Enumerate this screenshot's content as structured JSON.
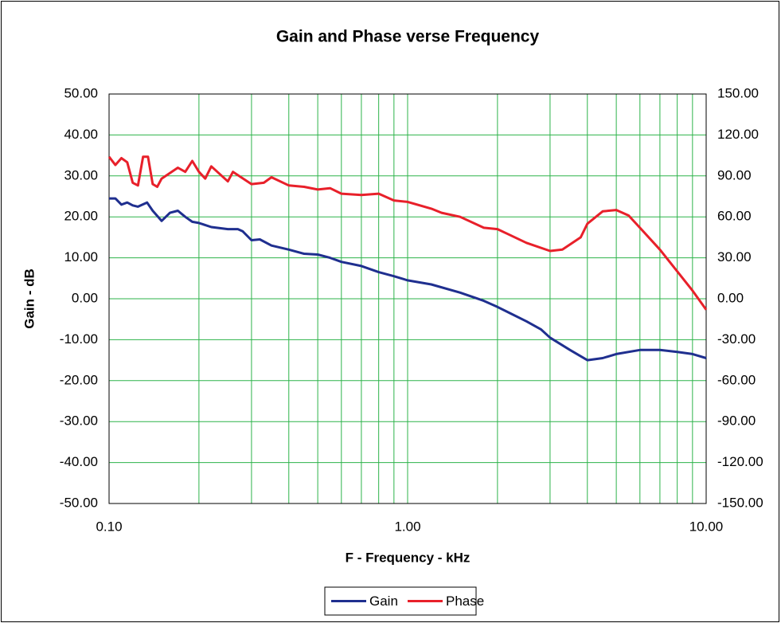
{
  "chart_data": {
    "type": "line",
    "title": "Gain and Phase verse Frequency",
    "x_label": "F - Frequency - kHz",
    "y_label": "Gain - dB",
    "xscale": "log",
    "xlim": [
      0.1,
      10
    ],
    "xticks": [
      {
        "value": 0.1,
        "label": "0.10"
      },
      {
        "value": 1,
        "label": "1.00"
      },
      {
        "value": 10,
        "label": "10.00"
      }
    ],
    "xminorticks": [
      0.2,
      0.3,
      0.4,
      0.5,
      0.6,
      0.7,
      0.8,
      0.9,
      2,
      3,
      4,
      5,
      6,
      7,
      8,
      9
    ],
    "ylim": [
      -50,
      50
    ],
    "yticks": [
      {
        "value": -50,
        "label": "-50.00"
      },
      {
        "value": -40,
        "label": "-40.00"
      },
      {
        "value": -30,
        "label": "-30.00"
      },
      {
        "value": -20,
        "label": "-20.00"
      },
      {
        "value": -10,
        "label": "-10.00"
      },
      {
        "value": 0,
        "label": "0.00"
      },
      {
        "value": 10,
        "label": "10.00"
      },
      {
        "value": 20,
        "label": "20.00"
      },
      {
        "value": 30,
        "label": "30.00"
      },
      {
        "value": 40,
        "label": "40.00"
      },
      {
        "value": 50,
        "label": "50.00"
      }
    ],
    "y2lim": [
      -150,
      150
    ],
    "y2ticks": [
      {
        "value": -150,
        "label": "-150.00"
      },
      {
        "value": -120,
        "label": "-120.00"
      },
      {
        "value": -90,
        "label": "-90.00"
      },
      {
        "value": -60,
        "label": "-60.00"
      },
      {
        "value": -30,
        "label": "-30.00"
      },
      {
        "value": 0,
        "label": "0.00"
      },
      {
        "value": 30,
        "label": "30.00"
      },
      {
        "value": 60,
        "label": "60.00"
      },
      {
        "value": 90,
        "label": "90.00"
      },
      {
        "value": 120,
        "label": "120.00"
      },
      {
        "value": 150,
        "label": "150.00"
      }
    ],
    "grid": true,
    "grid_color": "#2db34a",
    "legend": "bottom",
    "series": [
      {
        "name": "Gain",
        "color": "#1f2f8f",
        "x": [
          0.1,
          0.105,
          0.11,
          0.115,
          0.12,
          0.125,
          0.134,
          0.14,
          0.15,
          0.16,
          0.17,
          0.18,
          0.19,
          0.2,
          0.22,
          0.25,
          0.27,
          0.28,
          0.3,
          0.32,
          0.35,
          0.4,
          0.45,
          0.5,
          0.55,
          0.6,
          0.7,
          0.8,
          0.9,
          1.0,
          1.2,
          1.5,
          1.8,
          2.0,
          2.2,
          2.5,
          2.8,
          3.0,
          3.5,
          4.0,
          4.5,
          5.0,
          6.0,
          7.0,
          8.0,
          9.0,
          10
        ],
        "values": [
          24.5,
          24.5,
          23,
          23.5,
          22.8,
          22.5,
          23.5,
          21.5,
          19,
          21,
          21.5,
          20,
          18.8,
          18.5,
          17.5,
          17,
          17,
          16.5,
          14.3,
          14.5,
          13,
          12,
          11,
          10.8,
          10,
          9,
          8,
          6.5,
          5.5,
          4.5,
          3.5,
          1.5,
          -0.5,
          -2,
          -3.5,
          -5.5,
          -7.5,
          -9.5,
          -12.5,
          -15,
          -14.5,
          -13.5,
          -12.5,
          -12.5,
          -13,
          -13.5,
          -14.5
        ]
      },
      {
        "name": "Phase",
        "color": "#e8202a",
        "axis": "y2",
        "x": [
          0.1,
          0.105,
          0.11,
          0.115,
          0.12,
          0.125,
          0.13,
          0.135,
          0.14,
          0.145,
          0.15,
          0.17,
          0.18,
          0.19,
          0.2,
          0.21,
          0.22,
          0.25,
          0.26,
          0.3,
          0.33,
          0.35,
          0.4,
          0.45,
          0.5,
          0.55,
          0.6,
          0.7,
          0.8,
          0.9,
          1.0,
          1.2,
          1.3,
          1.5,
          1.8,
          2.0,
          2.5,
          3.0,
          3.3,
          3.8,
          4.0,
          4.5,
          5.0,
          5.5,
          6.0,
          7.0,
          8.0,
          9.0,
          10
        ],
        "values": [
          104,
          98,
          103,
          100,
          85,
          83,
          104,
          104,
          84,
          82,
          88,
          96,
          93,
          101,
          93,
          88,
          97,
          86,
          93,
          84,
          85,
          89,
          83,
          82,
          80,
          81,
          77,
          76,
          77,
          72,
          71,
          66,
          63,
          60,
          52,
          51,
          41,
          35,
          36,
          45,
          55,
          64,
          65,
          61,
          52,
          36,
          20,
          6,
          -8
        ]
      }
    ]
  }
}
